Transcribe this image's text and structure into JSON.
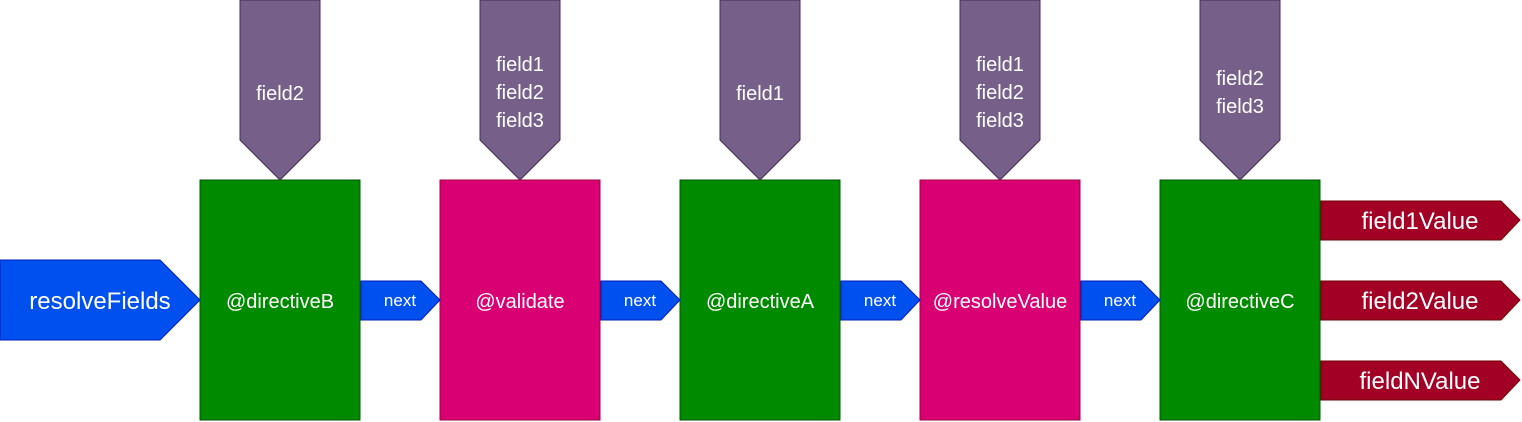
{
  "colors": {
    "directive_green": "#008a00",
    "directive_green_stroke": "#005700",
    "directive_pink": "#d80073",
    "directive_pink_stroke": "#a50040",
    "field_purple": "#76608a",
    "field_purple_stroke": "#432d57",
    "arrow_blue": "#0050ef",
    "arrow_blue_stroke": "#001dbc",
    "output_red": "#a20025",
    "output_red_stroke": "#6f0000"
  },
  "entry": {
    "label": "resolveFields"
  },
  "next_label": "next",
  "directives": [
    {
      "label": "@directiveB",
      "fields": [
        "field2"
      ]
    },
    {
      "label": "@validate",
      "fields": [
        "field1",
        "field2",
        "field3"
      ]
    },
    {
      "label": "@directiveA",
      "fields": [
        "field1"
      ]
    },
    {
      "label": "@resolveValue",
      "fields": [
        "field1",
        "field2",
        "field3"
      ]
    },
    {
      "label": "@directiveC",
      "fields": [
        "field2",
        "field3"
      ]
    }
  ],
  "outputs": [
    "field1Value",
    "field2Value",
    "fieldNValue"
  ]
}
